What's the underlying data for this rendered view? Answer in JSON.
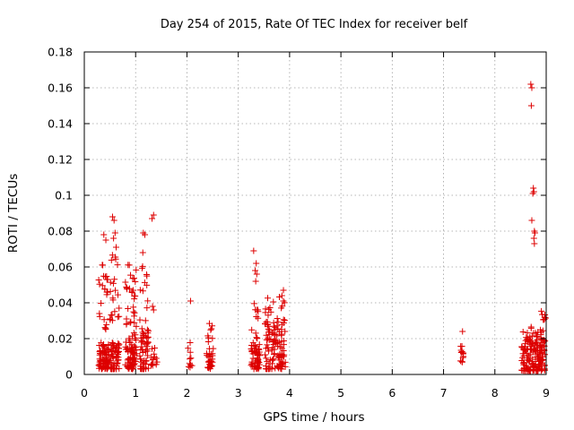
{
  "chart_data": {
    "type": "scatter",
    "title": "Day 254 of 2015, Rate Of TEC Index for receiver belf",
    "xlabel": "GPS time / hours",
    "ylabel": "ROTI / TECUs",
    "xlim": [
      0,
      9
    ],
    "ylim": [
      0,
      0.18
    ],
    "grid": true,
    "xticks": [
      "0",
      "1",
      "2",
      "3",
      "4",
      "5",
      "6",
      "7",
      "8",
      "9"
    ],
    "yticks": [
      "0",
      "0.02",
      "0.04",
      "0.06",
      "0.08",
      "0.1",
      "0.12",
      "0.14",
      "0.16",
      "0.18"
    ],
    "marker": "+",
    "series_color": "#dd0000",
    "clusters": [
      {
        "x0": 0.28,
        "x1": 0.48,
        "n": 70,
        "ylo": 0.003,
        "yhi": 0.018
      },
      {
        "x0": 0.28,
        "x1": 0.48,
        "n": 22,
        "ylo": 0.025,
        "yhi": 0.062
      },
      {
        "x0": 0.5,
        "x1": 0.68,
        "n": 55,
        "ylo": 0.003,
        "yhi": 0.018
      },
      {
        "x0": 0.5,
        "x1": 0.68,
        "n": 22,
        "ylo": 0.03,
        "yhi": 0.07
      },
      {
        "x0": 0.8,
        "x1": 1.02,
        "n": 70,
        "ylo": 0.003,
        "yhi": 0.02
      },
      {
        "x0": 0.8,
        "x1": 1.02,
        "n": 35,
        "ylo": 0.02,
        "yhi": 0.062
      },
      {
        "x0": 1.08,
        "x1": 1.25,
        "n": 55,
        "ylo": 0.003,
        "yhi": 0.026
      },
      {
        "x0": 1.08,
        "x1": 1.25,
        "n": 12,
        "ylo": 0.03,
        "yhi": 0.062
      },
      {
        "x0": 1.3,
        "x1": 1.42,
        "n": 14,
        "ylo": 0.005,
        "yhi": 0.016
      },
      {
        "x0": 2.0,
        "x1": 2.1,
        "n": 10,
        "ylo": 0.004,
        "yhi": 0.02
      },
      {
        "x0": 2.38,
        "x1": 2.52,
        "n": 30,
        "ylo": 0.003,
        "yhi": 0.015
      },
      {
        "x0": 2.38,
        "x1": 2.52,
        "n": 8,
        "ylo": 0.018,
        "yhi": 0.03
      },
      {
        "x0": 3.25,
        "x1": 3.42,
        "n": 55,
        "ylo": 0.003,
        "yhi": 0.018
      },
      {
        "x0": 3.25,
        "x1": 3.42,
        "n": 12,
        "ylo": 0.02,
        "yhi": 0.04
      },
      {
        "x0": 3.52,
        "x1": 3.72,
        "n": 55,
        "ylo": 0.003,
        "yhi": 0.028
      },
      {
        "x0": 3.52,
        "x1": 3.72,
        "n": 14,
        "ylo": 0.028,
        "yhi": 0.044
      },
      {
        "x0": 3.72,
        "x1": 3.92,
        "n": 45,
        "ylo": 0.003,
        "yhi": 0.025
      },
      {
        "x0": 3.72,
        "x1": 3.92,
        "n": 14,
        "ylo": 0.025,
        "yhi": 0.046
      },
      {
        "x0": 7.33,
        "x1": 7.4,
        "n": 12,
        "ylo": 0.006,
        "yhi": 0.017
      },
      {
        "x0": 8.52,
        "x1": 8.98,
        "n": 150,
        "ylo": 0.002,
        "yhi": 0.02
      },
      {
        "x0": 8.52,
        "x1": 8.98,
        "n": 25,
        "ylo": 0.018,
        "yhi": 0.027
      },
      {
        "x0": 8.9,
        "x1": 9.0,
        "n": 8,
        "ylo": 0.03,
        "yhi": 0.036
      }
    ],
    "points": [
      [
        0.38,
        0.078
      ],
      [
        0.42,
        0.075
      ],
      [
        0.36,
        0.061
      ],
      [
        0.55,
        0.088
      ],
      [
        0.58,
        0.086
      ],
      [
        0.6,
        0.079
      ],
      [
        0.57,
        0.076
      ],
      [
        0.62,
        0.071
      ],
      [
        1.15,
        0.079
      ],
      [
        1.18,
        0.078
      ],
      [
        1.14,
        0.068
      ],
      [
        1.32,
        0.087
      ],
      [
        1.35,
        0.089
      ],
      [
        1.33,
        0.038
      ],
      [
        1.35,
        0.036
      ],
      [
        2.07,
        0.041
      ],
      [
        3.3,
        0.069
      ],
      [
        3.35,
        0.062
      ],
      [
        3.33,
        0.058
      ],
      [
        3.36,
        0.056
      ],
      [
        3.34,
        0.052
      ],
      [
        3.88,
        0.047
      ],
      [
        3.85,
        0.044
      ],
      [
        7.37,
        0.024
      ],
      [
        8.7,
        0.162
      ],
      [
        8.72,
        0.16
      ],
      [
        8.71,
        0.15
      ],
      [
        8.75,
        0.104
      ],
      [
        8.76,
        0.102
      ],
      [
        8.74,
        0.101
      ],
      [
        8.72,
        0.086
      ],
      [
        8.77,
        0.08
      ],
      [
        8.78,
        0.079
      ],
      [
        8.76,
        0.076
      ],
      [
        8.77,
        0.073
      ]
    ]
  }
}
